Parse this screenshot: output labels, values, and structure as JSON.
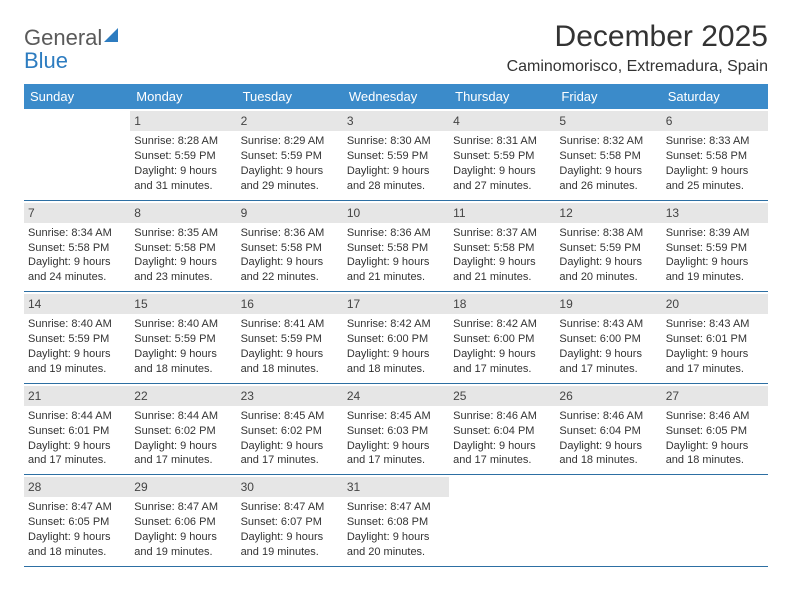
{
  "logo": {
    "line1": "General",
    "line2": "Blue"
  },
  "title": "December 2025",
  "location": "Caminomorisco, Extremadura, Spain",
  "colors": {
    "header_bg": "#3b8bca",
    "header_text": "#ffffff",
    "daynum_bg": "#e6e6e6",
    "week_border": "#2d6fa3",
    "text": "#333333",
    "logo_blue": "#2d7cc0",
    "logo_gray": "#5a5a5a",
    "background": "#ffffff"
  },
  "typography": {
    "title_fontsize": 30,
    "location_fontsize": 16,
    "dayheader_fontsize": 13,
    "body_fontsize": 11,
    "font_family": "Arial"
  },
  "day_headers": [
    "Sunday",
    "Monday",
    "Tuesday",
    "Wednesday",
    "Thursday",
    "Friday",
    "Saturday"
  ],
  "weeks": [
    [
      {
        "n": "",
        "sr": "",
        "ss": "",
        "dl": ""
      },
      {
        "n": "1",
        "sr": "Sunrise: 8:28 AM",
        "ss": "Sunset: 5:59 PM",
        "dl": "Daylight: 9 hours and 31 minutes."
      },
      {
        "n": "2",
        "sr": "Sunrise: 8:29 AM",
        "ss": "Sunset: 5:59 PM",
        "dl": "Daylight: 9 hours and 29 minutes."
      },
      {
        "n": "3",
        "sr": "Sunrise: 8:30 AM",
        "ss": "Sunset: 5:59 PM",
        "dl": "Daylight: 9 hours and 28 minutes."
      },
      {
        "n": "4",
        "sr": "Sunrise: 8:31 AM",
        "ss": "Sunset: 5:59 PM",
        "dl": "Daylight: 9 hours and 27 minutes."
      },
      {
        "n": "5",
        "sr": "Sunrise: 8:32 AM",
        "ss": "Sunset: 5:58 PM",
        "dl": "Daylight: 9 hours and 26 minutes."
      },
      {
        "n": "6",
        "sr": "Sunrise: 8:33 AM",
        "ss": "Sunset: 5:58 PM",
        "dl": "Daylight: 9 hours and 25 minutes."
      }
    ],
    [
      {
        "n": "7",
        "sr": "Sunrise: 8:34 AM",
        "ss": "Sunset: 5:58 PM",
        "dl": "Daylight: 9 hours and 24 minutes."
      },
      {
        "n": "8",
        "sr": "Sunrise: 8:35 AM",
        "ss": "Sunset: 5:58 PM",
        "dl": "Daylight: 9 hours and 23 minutes."
      },
      {
        "n": "9",
        "sr": "Sunrise: 8:36 AM",
        "ss": "Sunset: 5:58 PM",
        "dl": "Daylight: 9 hours and 22 minutes."
      },
      {
        "n": "10",
        "sr": "Sunrise: 8:36 AM",
        "ss": "Sunset: 5:58 PM",
        "dl": "Daylight: 9 hours and 21 minutes."
      },
      {
        "n": "11",
        "sr": "Sunrise: 8:37 AM",
        "ss": "Sunset: 5:58 PM",
        "dl": "Daylight: 9 hours and 21 minutes."
      },
      {
        "n": "12",
        "sr": "Sunrise: 8:38 AM",
        "ss": "Sunset: 5:59 PM",
        "dl": "Daylight: 9 hours and 20 minutes."
      },
      {
        "n": "13",
        "sr": "Sunrise: 8:39 AM",
        "ss": "Sunset: 5:59 PM",
        "dl": "Daylight: 9 hours and 19 minutes."
      }
    ],
    [
      {
        "n": "14",
        "sr": "Sunrise: 8:40 AM",
        "ss": "Sunset: 5:59 PM",
        "dl": "Daylight: 9 hours and 19 minutes."
      },
      {
        "n": "15",
        "sr": "Sunrise: 8:40 AM",
        "ss": "Sunset: 5:59 PM",
        "dl": "Daylight: 9 hours and 18 minutes."
      },
      {
        "n": "16",
        "sr": "Sunrise: 8:41 AM",
        "ss": "Sunset: 5:59 PM",
        "dl": "Daylight: 9 hours and 18 minutes."
      },
      {
        "n": "17",
        "sr": "Sunrise: 8:42 AM",
        "ss": "Sunset: 6:00 PM",
        "dl": "Daylight: 9 hours and 18 minutes."
      },
      {
        "n": "18",
        "sr": "Sunrise: 8:42 AM",
        "ss": "Sunset: 6:00 PM",
        "dl": "Daylight: 9 hours and 17 minutes."
      },
      {
        "n": "19",
        "sr": "Sunrise: 8:43 AM",
        "ss": "Sunset: 6:00 PM",
        "dl": "Daylight: 9 hours and 17 minutes."
      },
      {
        "n": "20",
        "sr": "Sunrise: 8:43 AM",
        "ss": "Sunset: 6:01 PM",
        "dl": "Daylight: 9 hours and 17 minutes."
      }
    ],
    [
      {
        "n": "21",
        "sr": "Sunrise: 8:44 AM",
        "ss": "Sunset: 6:01 PM",
        "dl": "Daylight: 9 hours and 17 minutes."
      },
      {
        "n": "22",
        "sr": "Sunrise: 8:44 AM",
        "ss": "Sunset: 6:02 PM",
        "dl": "Daylight: 9 hours and 17 minutes."
      },
      {
        "n": "23",
        "sr": "Sunrise: 8:45 AM",
        "ss": "Sunset: 6:02 PM",
        "dl": "Daylight: 9 hours and 17 minutes."
      },
      {
        "n": "24",
        "sr": "Sunrise: 8:45 AM",
        "ss": "Sunset: 6:03 PM",
        "dl": "Daylight: 9 hours and 17 minutes."
      },
      {
        "n": "25",
        "sr": "Sunrise: 8:46 AM",
        "ss": "Sunset: 6:04 PM",
        "dl": "Daylight: 9 hours and 17 minutes."
      },
      {
        "n": "26",
        "sr": "Sunrise: 8:46 AM",
        "ss": "Sunset: 6:04 PM",
        "dl": "Daylight: 9 hours and 18 minutes."
      },
      {
        "n": "27",
        "sr": "Sunrise: 8:46 AM",
        "ss": "Sunset: 6:05 PM",
        "dl": "Daylight: 9 hours and 18 minutes."
      }
    ],
    [
      {
        "n": "28",
        "sr": "Sunrise: 8:47 AM",
        "ss": "Sunset: 6:05 PM",
        "dl": "Daylight: 9 hours and 18 minutes."
      },
      {
        "n": "29",
        "sr": "Sunrise: 8:47 AM",
        "ss": "Sunset: 6:06 PM",
        "dl": "Daylight: 9 hours and 19 minutes."
      },
      {
        "n": "30",
        "sr": "Sunrise: 8:47 AM",
        "ss": "Sunset: 6:07 PM",
        "dl": "Daylight: 9 hours and 19 minutes."
      },
      {
        "n": "31",
        "sr": "Sunrise: 8:47 AM",
        "ss": "Sunset: 6:08 PM",
        "dl": "Daylight: 9 hours and 20 minutes."
      },
      {
        "n": "",
        "sr": "",
        "ss": "",
        "dl": ""
      },
      {
        "n": "",
        "sr": "",
        "ss": "",
        "dl": ""
      },
      {
        "n": "",
        "sr": "",
        "ss": "",
        "dl": ""
      }
    ]
  ]
}
